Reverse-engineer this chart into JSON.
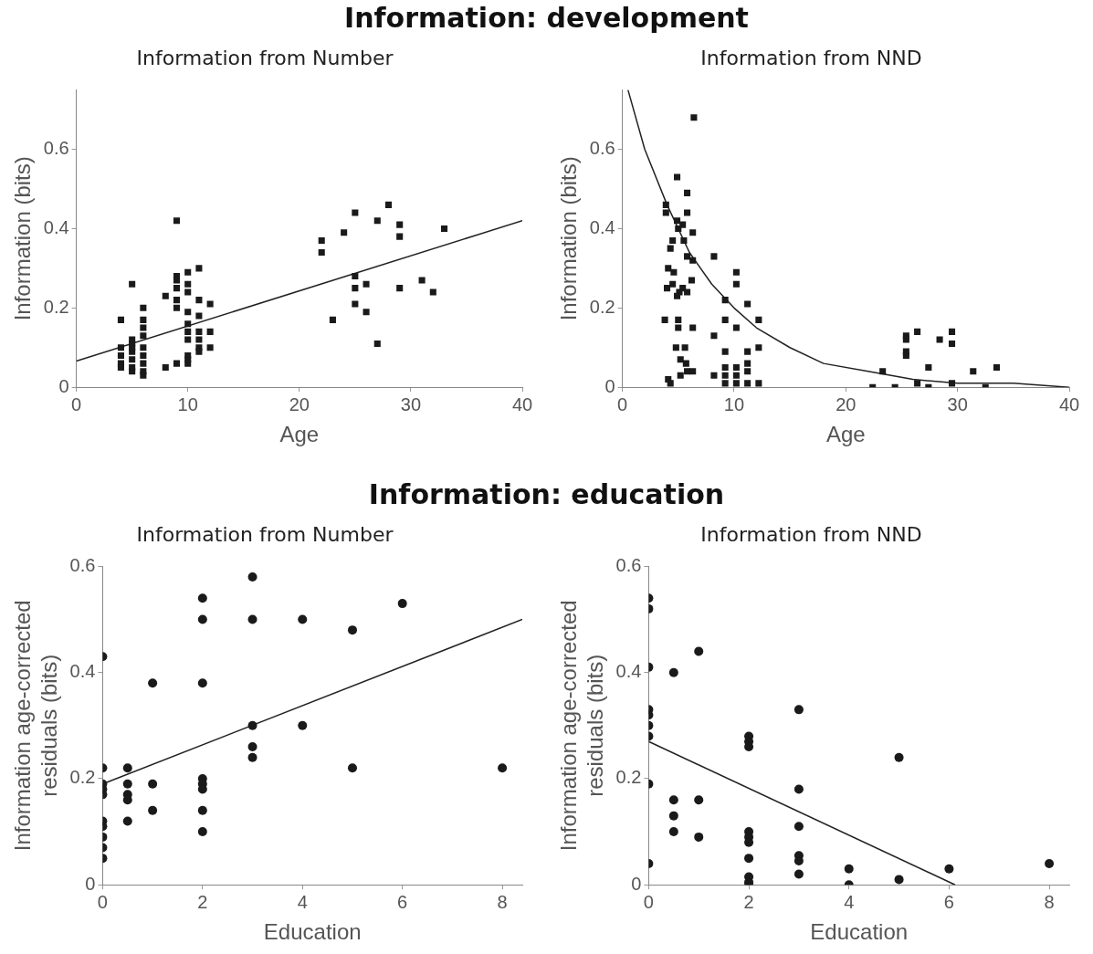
{
  "chart_data": [
    {
      "type": "scatter",
      "title": "Information from Number",
      "xlabel": "Age",
      "ylabel": "Information (bits)",
      "annotations": [
        "Information:  development"
      ],
      "xlim": [
        0,
        40
      ],
      "xticks": [
        0,
        10,
        20,
        30,
        40
      ],
      "ylim": [
        0,
        0.75
      ],
      "yticks": [
        0,
        0.2,
        0.4,
        0.6
      ],
      "grid": false,
      "legend": false,
      "series": [
        {
          "marker": "square",
          "color": "#1a1a1a",
          "x": [
            4,
            4,
            4,
            4,
            4,
            5,
            5,
            5,
            5,
            5,
            5,
            5,
            5,
            6,
            6,
            6,
            6,
            6,
            6,
            6,
            6,
            6,
            8,
            8,
            9,
            9,
            9,
            9,
            9,
            9,
            9,
            10,
            10,
            10,
            10,
            10,
            10,
            10,
            10,
            10,
            10,
            11,
            11,
            11,
            11,
            11,
            11,
            11,
            12,
            12,
            12,
            22,
            22,
            24,
            25,
            27,
            28,
            29,
            29,
            33,
            25,
            25,
            26,
            25,
            26,
            23,
            27,
            29,
            31,
            32
          ],
          "values": [
            0.17,
            0.1,
            0.08,
            0.06,
            0.05,
            0.26,
            0.12,
            0.11,
            0.1,
            0.09,
            0.07,
            0.05,
            0.04,
            0.2,
            0.17,
            0.15,
            0.13,
            0.1,
            0.08,
            0.06,
            0.04,
            0.03,
            0.23,
            0.05,
            0.42,
            0.28,
            0.27,
            0.25,
            0.22,
            0.2,
            0.06,
            0.29,
            0.26,
            0.24,
            0.19,
            0.16,
            0.14,
            0.12,
            0.08,
            0.07,
            0.06,
            0.3,
            0.22,
            0.18,
            0.14,
            0.12,
            0.1,
            0.09,
            0.21,
            0.14,
            0.1,
            0.37,
            0.34,
            0.39,
            0.44,
            0.42,
            0.46,
            0.41,
            0.38,
            0.4,
            0.28,
            0.25,
            0.26,
            0.21,
            0.19,
            0.17,
            0.11,
            0.25,
            0.27,
            0.24
          ]
        },
        {
          "type": "line",
          "marker": "none",
          "color": "#222222",
          "x": [
            0,
            40
          ],
          "values": [
            0.066,
            0.42
          ]
        }
      ]
    },
    {
      "type": "scatter",
      "title": "Information from NND",
      "xlabel": "Age",
      "ylabel": "Information (bits)",
      "xlim": [
        0,
        40
      ],
      "xticks": [
        0,
        10,
        20,
        30,
        40
      ],
      "ylim": [
        0,
        0.75
      ],
      "yticks": [
        0,
        0.2,
        0.4,
        0.6
      ],
      "grid": false,
      "legend": false,
      "series": [
        {
          "marker": "square",
          "color": "#1a1a1a",
          "x": [
            6.4,
            4.9,
            5.8,
            3.9,
            3.9,
            4.9,
            5.4,
            5.8,
            5.0,
            6.3,
            4.5,
            4.3,
            5.5,
            5.8,
            6.3,
            8.2,
            4.1,
            4.6,
            6.2,
            10.2,
            10.2,
            4.0,
            4.5,
            5.1,
            4.9,
            5.4,
            5.8,
            9.2,
            11.2,
            3.8,
            5.0,
            5.0,
            6.3,
            9.2,
            10.2,
            12.2,
            8.2,
            4.8,
            5.6,
            9.2,
            12.2,
            11.2,
            5.2,
            5.7,
            11.2,
            5.2,
            5.8,
            6.3,
            4.1,
            4.3,
            8.2,
            9.2,
            9.2,
            9.2,
            10.2,
            10.2,
            10.2,
            11.2,
            11.2,
            12.2,
            22.4,
            23.3,
            24.4,
            25.4,
            25.4,
            25.4,
            25.4,
            26.4,
            26.4,
            27.4,
            27.4,
            28.4,
            29.5,
            29.5,
            29.5,
            31.4,
            32.5,
            33.5
          ],
          "values": [
            0.68,
            0.53,
            0.49,
            0.46,
            0.44,
            0.42,
            0.41,
            0.44,
            0.4,
            0.39,
            0.37,
            0.35,
            0.37,
            0.33,
            0.32,
            0.33,
            0.3,
            0.29,
            0.27,
            0.29,
            0.26,
            0.25,
            0.26,
            0.24,
            0.23,
            0.25,
            0.24,
            0.22,
            0.21,
            0.17,
            0.17,
            0.15,
            0.15,
            0.17,
            0.15,
            0.17,
            0.13,
            0.1,
            0.1,
            0.09,
            0.1,
            0.09,
            0.07,
            0.06,
            0.06,
            0.03,
            0.04,
            0.04,
            0.02,
            0.01,
            0.03,
            0.05,
            0.03,
            0.01,
            0.05,
            0.03,
            0.01,
            0.04,
            0.01,
            0.01,
            0.0,
            0.04,
            0.0,
            0.13,
            0.12,
            0.09,
            0.08,
            0.14,
            0.01,
            0.0,
            0.05,
            0.12,
            0.14,
            0.11,
            0.01,
            0.04,
            0.0,
            0.05
          ]
        },
        {
          "type": "line",
          "marker": "none",
          "color": "#222222",
          "x": [
            0.5,
            2,
            4,
            6,
            8,
            10,
            12,
            15,
            18,
            22,
            26,
            30,
            35,
            40
          ],
          "values": [
            0.75,
            0.6,
            0.46,
            0.34,
            0.26,
            0.2,
            0.15,
            0.1,
            0.06,
            0.04,
            0.02,
            0.01,
            0.01,
            0.0
          ]
        }
      ]
    },
    {
      "type": "scatter",
      "title": "Information from Number",
      "xlabel": "Education",
      "ylabel": "Information age-corrected residuals (bits)",
      "annotations": [
        "Information:  education"
      ],
      "xlim": [
        0,
        8.4
      ],
      "xticks": [
        0,
        2,
        4,
        6,
        8
      ],
      "ylim": [
        0,
        0.6
      ],
      "yticks": [
        0,
        0.2,
        0.4,
        0.6
      ],
      "grid": false,
      "legend": false,
      "series": [
        {
          "marker": "circle",
          "color": "#1a1a1a",
          "x": [
            0,
            0,
            0,
            0,
            0,
            0,
            0,
            0,
            0,
            0,
            0.5,
            0.5,
            0.5,
            0.5,
            0.5,
            1,
            1,
            1,
            2,
            2,
            2,
            2,
            2,
            2,
            2,
            2,
            3,
            3,
            3,
            3,
            3,
            4,
            4,
            5,
            5,
            6,
            8
          ],
          "values": [
            0.43,
            0.22,
            0.19,
            0.18,
            0.17,
            0.12,
            0.11,
            0.09,
            0.07,
            0.05,
            0.22,
            0.19,
            0.17,
            0.16,
            0.12,
            0.38,
            0.19,
            0.14,
            0.54,
            0.5,
            0.38,
            0.2,
            0.19,
            0.18,
            0.14,
            0.1,
            0.58,
            0.5,
            0.3,
            0.26,
            0.24,
            0.5,
            0.3,
            0.48,
            0.22,
            0.53,
            0.22
          ]
        },
        {
          "type": "line",
          "marker": "none",
          "color": "#222222",
          "x": [
            0,
            8.4
          ],
          "values": [
            0.19,
            0.5
          ]
        }
      ]
    },
    {
      "type": "scatter",
      "title": "Information from NND",
      "xlabel": "Education",
      "ylabel": "Information age-corrected residuals (bits)",
      "xlim": [
        0,
        8.4
      ],
      "xticks": [
        0,
        2,
        4,
        6,
        8
      ],
      "ylim": [
        0,
        0.6
      ],
      "yticks": [
        0,
        0.2,
        0.4,
        0.6
      ],
      "grid": false,
      "legend": false,
      "series": [
        {
          "marker": "circle",
          "color": "#1a1a1a",
          "x": [
            0,
            0,
            0,
            0,
            0,
            0,
            0,
            0,
            0,
            0.5,
            0.5,
            0.5,
            0.5,
            1,
            1,
            1,
            2,
            2,
            2,
            2,
            2,
            2,
            2,
            2,
            2,
            2,
            3,
            3,
            3,
            3,
            3,
            3,
            4,
            4,
            5,
            5,
            6,
            8
          ],
          "values": [
            0.54,
            0.52,
            0.41,
            0.33,
            0.32,
            0.3,
            0.28,
            0.19,
            0.04,
            0.4,
            0.16,
            0.13,
            0.1,
            0.44,
            0.16,
            0.09,
            0.28,
            0.27,
            0.26,
            0.1,
            0.09,
            0.08,
            0.05,
            0.015,
            0.005,
            0.0,
            0.33,
            0.18,
            0.11,
            0.055,
            0.045,
            0.02,
            0.03,
            0.0,
            0.24,
            0.01,
            0.03,
            0.04
          ]
        },
        {
          "type": "line",
          "marker": "none",
          "color": "#222222",
          "x": [
            0,
            6.12
          ],
          "values": [
            0.27,
            0
          ]
        }
      ]
    }
  ]
}
